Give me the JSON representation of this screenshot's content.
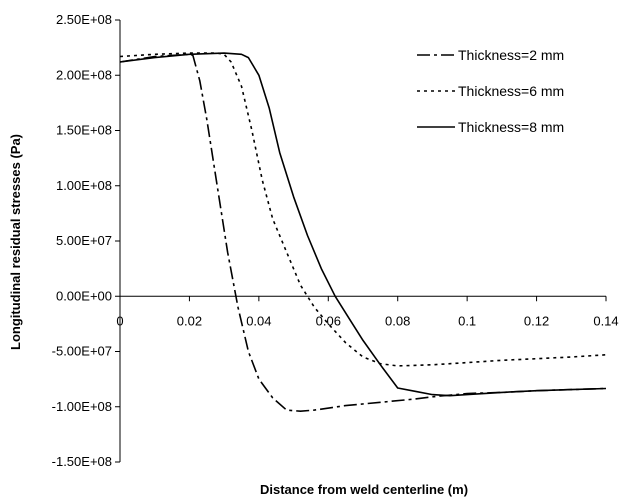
{
  "chart_data": {
    "type": "line",
    "xlabel": "Distance from weld centerline (m)",
    "ylabel": "Longitudinal residual stresses (Pa)",
    "xlim": [
      0,
      0.14
    ],
    "ylim": [
      -150000000,
      250000000
    ],
    "x_ticks": [
      0,
      0.02,
      0.04,
      0.06,
      0.08,
      0.1,
      0.12,
      0.14
    ],
    "x_tick_labels": [
      "0",
      "0.02",
      "0.04",
      "0.06",
      "0.08",
      "0.1",
      "0.12",
      "0.14"
    ],
    "y_ticks": [
      -150000000,
      -100000000,
      -50000000,
      0,
      50000000,
      100000000,
      150000000,
      200000000,
      250000000
    ],
    "y_tick_labels": [
      "-1.50E+08",
      "-1.00E+08",
      "-5.00E+07",
      "0.00E+00",
      "5.00E+07",
      "1.00E+08",
      "1.50E+08",
      "2.00E+08",
      "2.50E+08"
    ],
    "grid": false,
    "legend_position": "top-right",
    "series": [
      {
        "name": "Thickness=2 mm",
        "dash": "dashdot",
        "points": [
          [
            0,
            212000000
          ],
          [
            0.01,
            217000000
          ],
          [
            0.02,
            219000000
          ],
          [
            0.021,
            218000000
          ],
          [
            0.023,
            195000000
          ],
          [
            0.025,
            160000000
          ],
          [
            0.028,
            100000000
          ],
          [
            0.031,
            40000000
          ],
          [
            0.034,
            -10000000
          ],
          [
            0.037,
            -50000000
          ],
          [
            0.04,
            -75000000
          ],
          [
            0.044,
            -92000000
          ],
          [
            0.048,
            -103000000
          ],
          [
            0.052,
            -104000000
          ],
          [
            0.056,
            -103000000
          ],
          [
            0.065,
            -99000000
          ],
          [
            0.075,
            -96000000
          ],
          [
            0.085,
            -93000000
          ],
          [
            0.09,
            -91000000
          ],
          [
            0.1,
            -88000000
          ],
          [
            0.11,
            -87000000
          ],
          [
            0.12,
            -85500000
          ],
          [
            0.13,
            -84500000
          ],
          [
            0.14,
            -83500000
          ]
        ]
      },
      {
        "name": "Thickness=6 mm",
        "dash": "dotted",
        "points": [
          [
            0,
            217000000
          ],
          [
            0.01,
            219000000
          ],
          [
            0.02,
            220000000
          ],
          [
            0.028,
            220000000
          ],
          [
            0.03,
            219000000
          ],
          [
            0.032,
            212000000
          ],
          [
            0.035,
            190000000
          ],
          [
            0.038,
            150000000
          ],
          [
            0.041,
            105000000
          ],
          [
            0.044,
            70000000
          ],
          [
            0.048,
            40000000
          ],
          [
            0.052,
            10000000
          ],
          [
            0.056,
            -10000000
          ],
          [
            0.06,
            -25000000
          ],
          [
            0.065,
            -42000000
          ],
          [
            0.07,
            -55000000
          ],
          [
            0.075,
            -61000000
          ],
          [
            0.08,
            -63000000
          ],
          [
            0.09,
            -62000000
          ],
          [
            0.1,
            -60000000
          ],
          [
            0.11,
            -58000000
          ],
          [
            0.12,
            -56500000
          ],
          [
            0.13,
            -55000000
          ],
          [
            0.14,
            -53000000
          ]
        ]
      },
      {
        "name": "Thickness=8 mm",
        "dash": "solid",
        "points": [
          [
            0,
            212000000
          ],
          [
            0.01,
            216000000
          ],
          [
            0.02,
            219000000
          ],
          [
            0.03,
            220000000
          ],
          [
            0.035,
            219000000
          ],
          [
            0.037,
            216000000
          ],
          [
            0.04,
            200000000
          ],
          [
            0.043,
            170000000
          ],
          [
            0.046,
            130000000
          ],
          [
            0.05,
            90000000
          ],
          [
            0.054,
            55000000
          ],
          [
            0.058,
            25000000
          ],
          [
            0.062,
            0
          ],
          [
            0.066,
            -20000000
          ],
          [
            0.07,
            -40000000
          ],
          [
            0.075,
            -62000000
          ],
          [
            0.08,
            -83000000
          ],
          [
            0.085,
            -86000000
          ],
          [
            0.09,
            -89000000
          ],
          [
            0.095,
            -90000000
          ],
          [
            0.1,
            -89000000
          ],
          [
            0.11,
            -87000000
          ],
          [
            0.12,
            -85500000
          ],
          [
            0.13,
            -84500000
          ],
          [
            0.14,
            -83500000
          ]
        ]
      }
    ]
  }
}
